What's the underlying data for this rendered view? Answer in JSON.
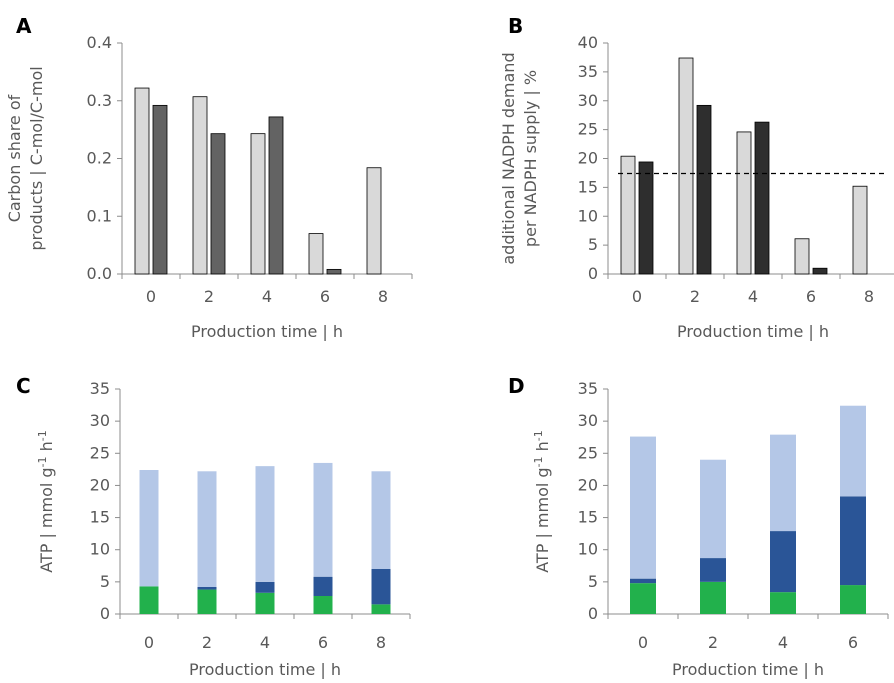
{
  "colors": {
    "light_gray": "#d9d9d9",
    "dark_gray": "#636363",
    "near_black": "#2e2e2e",
    "light_blue": "#b4c7e7",
    "dark_blue": "#2a5597",
    "green": "#22b14c"
  },
  "chart_data": [
    {
      "panel": "A",
      "type": "bar",
      "categories": [
        "0",
        "2",
        "4",
        "6",
        "8"
      ],
      "series": [
        {
          "values": [
            0.322,
            0.307,
            0.243,
            0.07,
            0.184
          ],
          "color": "#d9d9d9"
        },
        {
          "values": [
            0.292,
            0.243,
            0.272,
            0.008,
            null
          ],
          "color": "#636363"
        }
      ],
      "xlabel": "Production time | h",
      "ylabel": [
        "Carbon share of",
        "products | C-mol/C-mol"
      ],
      "ylim": [
        0,
        0.4
      ],
      "yticks": [
        "0.0",
        "0.1",
        "0.2",
        "0.3",
        "0.4"
      ],
      "grid": false
    },
    {
      "panel": "B",
      "type": "bar",
      "categories": [
        "0",
        "2",
        "4",
        "6",
        "8"
      ],
      "series": [
        {
          "values": [
            20.4,
            37.4,
            24.6,
            6.1,
            15.2
          ],
          "color": "#d9d9d9"
        },
        {
          "values": [
            19.4,
            29.2,
            26.3,
            1.0,
            null
          ],
          "color": "#2e2e2e"
        }
      ],
      "reference_line": 17.4,
      "xlabel": "Production time | h",
      "ylabel": [
        "additional NADPH demand",
        "per NADPH supply | %"
      ],
      "ylim": [
        0,
        40
      ],
      "yticks": [
        "0",
        "5",
        "10",
        "15",
        "20",
        "25",
        "30",
        "35",
        "40"
      ],
      "grid": false
    },
    {
      "panel": "C",
      "type": "bar",
      "stacked": true,
      "categories": [
        "0",
        "2",
        "4",
        "6",
        "8"
      ],
      "series": [
        {
          "values": [
            4.3,
            3.8,
            3.3,
            2.8,
            1.5
          ],
          "color": "#22b14c"
        },
        {
          "values": [
            0.0,
            0.4,
            1.7,
            3.0,
            5.5
          ],
          "color": "#2a5597"
        },
        {
          "values": [
            18.1,
            18.0,
            18.0,
            17.7,
            15.2
          ],
          "color": "#b4c7e7"
        }
      ],
      "xlabel": "Production time | h",
      "ylabel": "ATP | mmol g-1 h-1",
      "ylabel_parts": [
        "ATP  |  mmol g",
        "-1",
        " h",
        "-1"
      ],
      "ylim": [
        0,
        35
      ],
      "yticks": [
        "0",
        "5",
        "10",
        "15",
        "20",
        "25",
        "30",
        "35"
      ],
      "grid": false
    },
    {
      "panel": "D",
      "type": "bar",
      "stacked": true,
      "categories": [
        "0",
        "2",
        "4",
        "6"
      ],
      "series": [
        {
          "values": [
            4.8,
            5.0,
            3.4,
            4.5
          ],
          "color": "#22b14c"
        },
        {
          "values": [
            0.7,
            3.7,
            9.5,
            13.8
          ],
          "color": "#2a5597"
        },
        {
          "values": [
            22.1,
            15.3,
            15.0,
            14.1
          ],
          "color": "#b4c7e7"
        }
      ],
      "xlabel": "Production time | h",
      "ylabel": "ATP | mmol g-1 h-1",
      "ylabel_parts": [
        "ATP  |  mmol g",
        "-1",
        " h",
        "-1"
      ],
      "ylim": [
        0,
        35
      ],
      "yticks": [
        "0",
        "5",
        "10",
        "15",
        "20",
        "25",
        "30",
        "35"
      ],
      "grid": false
    }
  ]
}
